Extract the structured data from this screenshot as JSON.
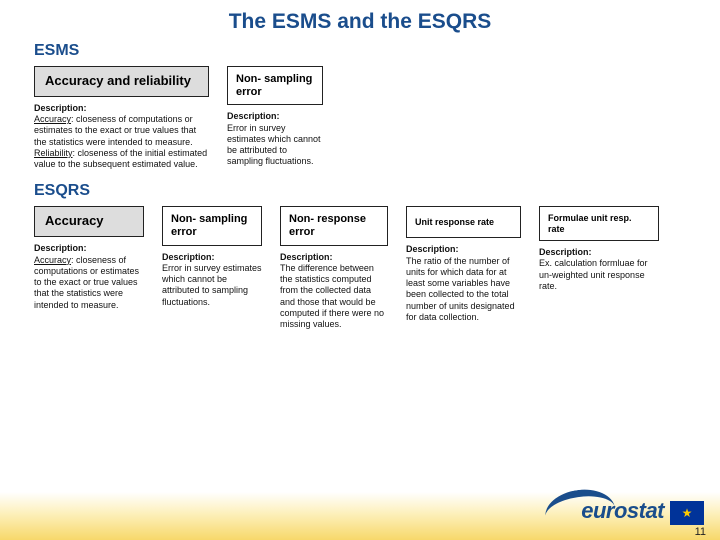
{
  "title": "The ESMS and the ESQRS",
  "esms": {
    "label": "ESMS",
    "cards": [
      {
        "header": "Accuracy and reliability",
        "desc_label": "Description:",
        "desc_body_html": "<span class='u'>Accuracy</span>: closeness of computations or estimates to the exact or true values that the statistics were intended to measure. <span class='u'>Reliability</span>: closeness of the initial estimated value to the subsequent estimated value."
      },
      {
        "header": "Non- sampling error",
        "desc_label": "Description:",
        "desc_body": "Error in survey estimates which cannot be attributed to sampling fluctuations."
      }
    ]
  },
  "esqrs": {
    "label": "ESQRS",
    "cards": [
      {
        "header": "Accuracy",
        "desc_label": "Description:",
        "desc_body_html": "<span class='u'>Accuracy</span>: closeness of computations or estimates to the exact or true values that the statistics were intended to measure."
      },
      {
        "header": "Non- sampling error",
        "desc_label": "Description:",
        "desc_body": "Error in survey estimates which cannot be attributed to sampling fluctuations."
      },
      {
        "header": "Non- response error",
        "desc_label": "Description:",
        "desc_body": "The difference between the statistics computed from the collected data and those that would be computed if there were no missing values."
      },
      {
        "header": "Unit response rate",
        "desc_label": "Description:",
        "desc_body": "The ratio of the number of units for which data for at least some variables have been collected to the total number of units designated for data collection."
      },
      {
        "header": "Formulae unit resp. rate",
        "desc_label": "Description:",
        "desc_body": "Ex. calculation formluae for un-weighted unit response rate."
      }
    ]
  },
  "footer": {
    "logo_text": "eurostat",
    "page_number": "11",
    "flag_glyph": "★"
  },
  "colors": {
    "title": "#1a4d8c",
    "header_shade": "#dddddd",
    "footer_yellow": "#f7d86a",
    "eu_blue": "#003399",
    "eu_gold": "#ffcc00"
  }
}
